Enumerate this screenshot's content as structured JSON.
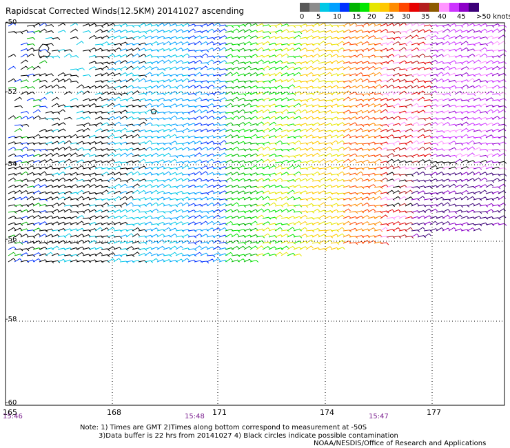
{
  "header": {
    "title": "Rapidscat Corrected Winds(12.5KM) 20141027 ascending"
  },
  "legend": {
    "colors": [
      "#595959",
      "#8c8c8c",
      "#00c8e6",
      "#00a0ff",
      "#0032ff",
      "#00b400",
      "#00e600",
      "#e6e600",
      "#ffc800",
      "#ff8c00",
      "#ff4600",
      "#e60000",
      "#b41e1e",
      "#8c5a00",
      "#ff96ff",
      "#cc33ff",
      "#8c00c8",
      "#3c0078"
    ],
    "labels": [
      "0",
      "5",
      "10",
      "15",
      "20",
      "25",
      "30",
      "35",
      "40",
      "45",
      ">50 knots"
    ]
  },
  "axes": {
    "lon_labels": [
      "165",
      "168",
      "171",
      "174",
      "177"
    ],
    "lat_labels": [
      "-50",
      "-52",
      "-54",
      "-56",
      "-58",
      "-60"
    ]
  },
  "times": [
    "15:46",
    "15:48",
    "15:47"
  ],
  "notes": {
    "line1": "Note: 1) Times are GMT 2)Times along bottom correspond to measurement at -50S",
    "line2": "3)Data buffer is 22 hrs from 20141027 4) Black circles indicate possible contamination",
    "line3": "NOAA/NESDIS/Office of Research and Applications"
  }
}
